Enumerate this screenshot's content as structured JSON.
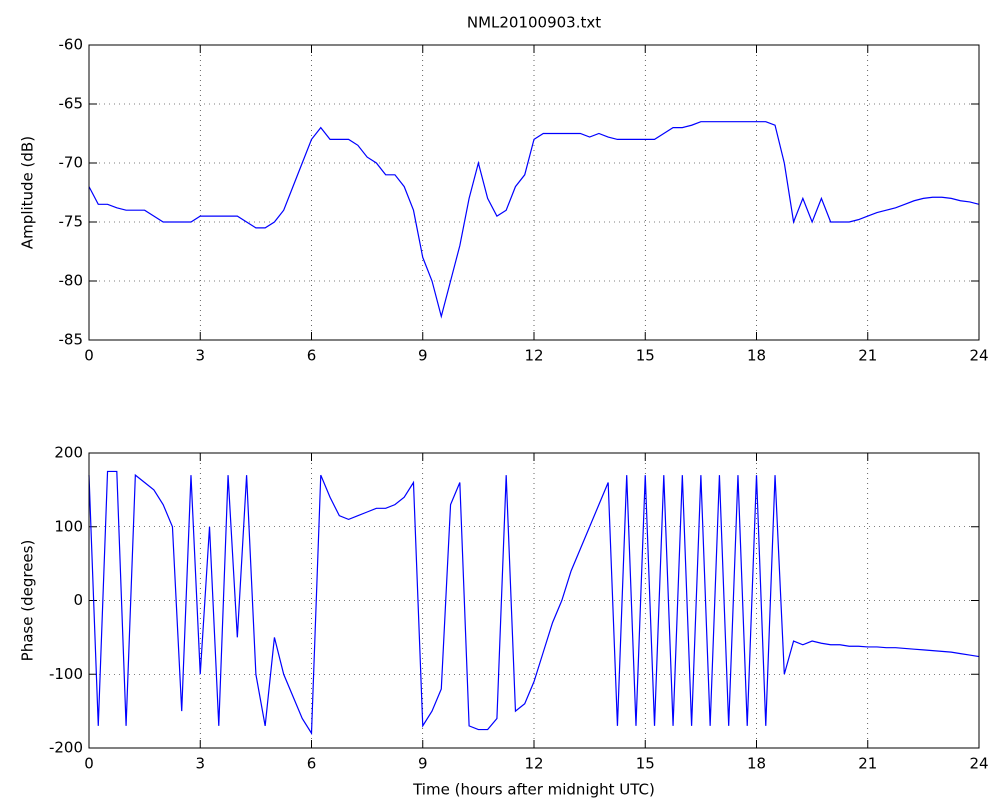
{
  "chart_data": [
    {
      "type": "line",
      "title": "NML20100903.txt",
      "ylabel": "Amplitude (dB)",
      "x": [
        0,
        0.25,
        0.5,
        0.75,
        1,
        1.25,
        1.5,
        1.75,
        2,
        2.25,
        2.5,
        2.75,
        3,
        3.25,
        3.5,
        3.75,
        4,
        4.25,
        4.5,
        4.75,
        5,
        5.25,
        5.5,
        5.75,
        6,
        6.25,
        6.5,
        6.75,
        7,
        7.25,
        7.5,
        7.75,
        8,
        8.25,
        8.5,
        8.75,
        9,
        9.25,
        9.5,
        9.75,
        10,
        10.25,
        10.5,
        10.75,
        11,
        11.25,
        11.5,
        11.75,
        12,
        12.25,
        12.5,
        12.75,
        13,
        13.25,
        13.5,
        13.75,
        14,
        14.25,
        14.5,
        14.75,
        15,
        15.25,
        15.5,
        15.75,
        16,
        16.25,
        16.5,
        16.75,
        17,
        17.25,
        17.5,
        17.75,
        18,
        18.25,
        18.5,
        18.75,
        19,
        19.25,
        19.5,
        19.75,
        20,
        20.25,
        20.5,
        20.75,
        21,
        21.25,
        21.5,
        21.75,
        22,
        22.25,
        22.5,
        22.75,
        23,
        23.25,
        23.5,
        23.75,
        24
      ],
      "values": [
        -72,
        -73.5,
        -73.5,
        -73.8,
        -74,
        -74,
        -74,
        -74.5,
        -75,
        -75,
        -75,
        -75,
        -74.5,
        -74.5,
        -74.5,
        -74.5,
        -74.5,
        -75,
        -75.5,
        -75.5,
        -75,
        -74,
        -72,
        -70,
        -68,
        -67,
        -68,
        -68,
        -68,
        -68.5,
        -69.5,
        -70,
        -71,
        -71,
        -72,
        -74,
        -78,
        -80,
        -83,
        -80,
        -77,
        -73,
        -70,
        -73,
        -74.5,
        -74,
        -72,
        -71,
        -68,
        -67.5,
        -67.5,
        -67.5,
        -67.5,
        -67.5,
        -67.8,
        -67.5,
        -67.8,
        -68,
        -68,
        -68,
        -68,
        -68,
        -67.5,
        -67,
        -67,
        -66.8,
        -66.5,
        -66.5,
        -66.5,
        -66.5,
        -66.5,
        -66.5,
        -66.5,
        -66.5,
        -66.8,
        -70,
        -75,
        -73,
        -75,
        -73,
        -75,
        -75,
        -75,
        -74.8,
        -74.5,
        -74.2,
        -74,
        -73.8,
        -73.5,
        -73.2,
        -73,
        -72.9,
        -72.9,
        -73,
        -73.2,
        -73.3,
        -73.5
      ],
      "color": "#0000ff",
      "xlim": [
        0,
        24
      ],
      "ylim": [
        -85,
        -60
      ],
      "xticks": [
        0,
        3,
        6,
        9,
        12,
        15,
        18,
        21,
        24
      ],
      "yticks": [
        -85,
        -80,
        -75,
        -70,
        -65,
        -60
      ],
      "grid": true
    },
    {
      "type": "line",
      "ylabel": "Phase (degrees)",
      "xlabel": "Time (hours after midnight UTC)",
      "x": [
        0,
        0.25,
        0.5,
        0.75,
        1,
        1.25,
        1.5,
        1.75,
        2,
        2.25,
        2.5,
        2.75,
        3,
        3.25,
        3.5,
        3.75,
        4,
        4.25,
        4.5,
        4.75,
        5,
        5.25,
        5.5,
        5.75,
        6,
        6.25,
        6.5,
        6.75,
        7,
        7.25,
        7.5,
        7.75,
        8,
        8.25,
        8.5,
        8.75,
        9,
        9.25,
        9.5,
        9.75,
        10,
        10.25,
        10.5,
        10.75,
        11,
        11.25,
        11.5,
        11.75,
        12,
        12.25,
        12.5,
        12.75,
        13,
        13.25,
        13.5,
        13.75,
        14,
        14.25,
        14.5,
        14.75,
        15,
        15.25,
        15.5,
        15.75,
        16,
        16.25,
        16.5,
        16.75,
        17,
        17.25,
        17.5,
        17.75,
        18,
        18.25,
        18.5,
        18.75,
        19,
        19.25,
        19.5,
        19.75,
        20,
        20.25,
        20.5,
        20.75,
        21,
        21.25,
        21.5,
        21.75,
        22,
        22.25,
        22.5,
        22.75,
        23,
        23.25,
        23.5,
        23.75,
        24
      ],
      "values": [
        170,
        -170,
        175,
        175,
        -170,
        170,
        160,
        150,
        130,
        100,
        -150,
        170,
        -100,
        100,
        -170,
        170,
        -50,
        170,
        -100,
        -170,
        -50,
        -100,
        -130,
        -160,
        -180,
        170,
        140,
        115,
        110,
        115,
        120,
        125,
        125,
        130,
        140,
        160,
        -170,
        -150,
        -120,
        130,
        160,
        -170,
        -175,
        -175,
        -160,
        170,
        -150,
        -140,
        -110,
        -70,
        -30,
        0,
        40,
        70,
        100,
        130,
        160,
        -170,
        170,
        -170,
        170,
        -170,
        170,
        -170,
        170,
        -170,
        170,
        -170,
        170,
        -170,
        170,
        -170,
        170,
        -170,
        170,
        -100,
        -55,
        -60,
        -55,
        -58,
        -60,
        -60,
        -62,
        -62,
        -63,
        -63,
        -64,
        -64,
        -65,
        -66,
        -67,
        -68,
        -69,
        -70,
        -72,
        -74,
        -76
      ],
      "color": "#0000ff",
      "xlim": [
        0,
        24
      ],
      "ylim": [
        -200,
        200
      ],
      "xticks": [
        0,
        3,
        6,
        9,
        12,
        15,
        18,
        21,
        24
      ],
      "yticks": [
        -200,
        -100,
        0,
        100,
        200
      ],
      "grid": true
    }
  ]
}
